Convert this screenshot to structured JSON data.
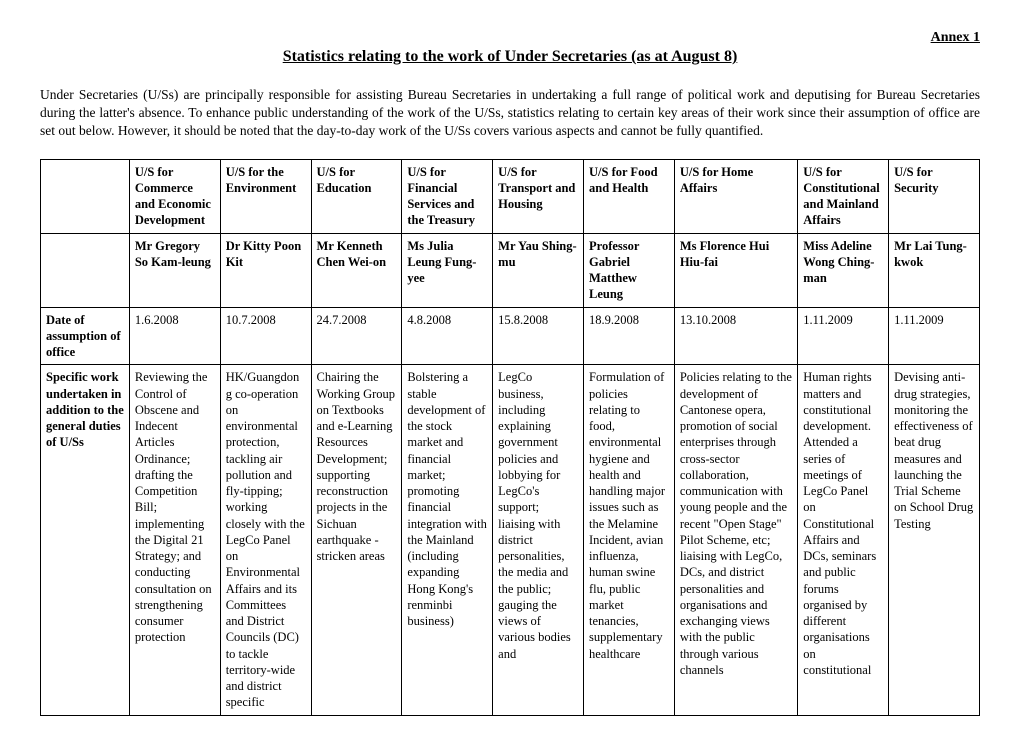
{
  "annex": "Annex 1",
  "title": "Statistics relating to the work of Under Secretaries (as at August 8)",
  "intro": "Under Secretaries (U/Ss) are principally responsible for assisting Bureau Secretaries in undertaking a full range of political work and deputising for Bureau Secretaries during the latter's absence.  To enhance public understanding of the work of the U/Ss, statistics relating to certain key areas of their work since their assumption of office are set out below.  However, it should be noted that the day-to-day work of the U/Ss covers various aspects and cannot be fully quantified.",
  "posts": [
    "U/S for Commerce and Economic Development",
    "U/S for the Environment",
    "U/S for Education",
    "U/S for Financial Services and the Treasury",
    "U/S for Transport and Housing",
    "U/S for Food and Health",
    "U/S for Home Affairs",
    "U/S for Constitutional and Mainland Affairs",
    "U/S for Security"
  ],
  "names": [
    "Mr Gregory So Kam-leung",
    "Dr Kitty Poon Kit",
    "Mr Kenneth Chen Wei-on",
    "Ms Julia Leung Fung-yee",
    "Mr Yau Shing-mu",
    "Professor Gabriel Matthew Leung",
    "Ms Florence Hui Hiu-fai",
    "Miss Adeline Wong Ching-man",
    "Mr Lai Tung-kwok"
  ],
  "row_labels": {
    "date": "Date of assumption of office",
    "work": "Specific work undertaken in addition to the general duties of U/Ss"
  },
  "dates": [
    "1.6.2008",
    "10.7.2008",
    "24.7.2008",
    "4.8.2008",
    "15.8.2008",
    "18.9.2008",
    "13.10.2008",
    "1.11.2009",
    "1.11.2009"
  ],
  "work": [
    "Reviewing the Control of Obscene and Indecent Articles Ordinance; drafting the Competition Bill; implementing the Digital 21 Strategy; and conducting consultation on strengthening consumer protection",
    "HK/Guangdong co-operation on environmental protection, tackling air pollution and fly-tipping; working closely with the LegCo Panel on Environmental Affairs and its Committees and District Councils (DC) to tackle territory-wide and district specific",
    "Chairing the Working Group on Textbooks and e-Learning Resources Development; supporting reconstruction projects in the Sichuan earthquake - stricken areas",
    "Bolstering a stable development of the stock market and financial market; promoting financial integration with the Mainland (including expanding Hong Kong's renminbi business)",
    "LegCo business, including explaining government policies and lobbying for LegCo's support; liaising with district personalities, the media and the public; gauging the views of various bodies and",
    "Formulation of policies relating to food, environmental hygiene and health and handling major issues such as the Melamine Incident, avian influenza, human swine flu, public market tenancies, supplementary healthcare",
    "Policies relating to the development of Cantonese opera, promotion of social enterprises through cross-sector collaboration, communication with young people and the recent \"Open Stage\" Pilot Scheme, etc; liaising with LegCo, DCs, and district personalities and organisations and exchanging views with the public through various channels",
    "Human rights matters and constitutional development. Attended a series of meetings of LegCo Panel on Constitutional Affairs and DCs, seminars and public forums organised by different organisations on constitutional",
    "Devising anti-drug strategies, monitoring the effectiveness of beat drug measures and launching the Trial Scheme on School Drug Testing"
  ]
}
